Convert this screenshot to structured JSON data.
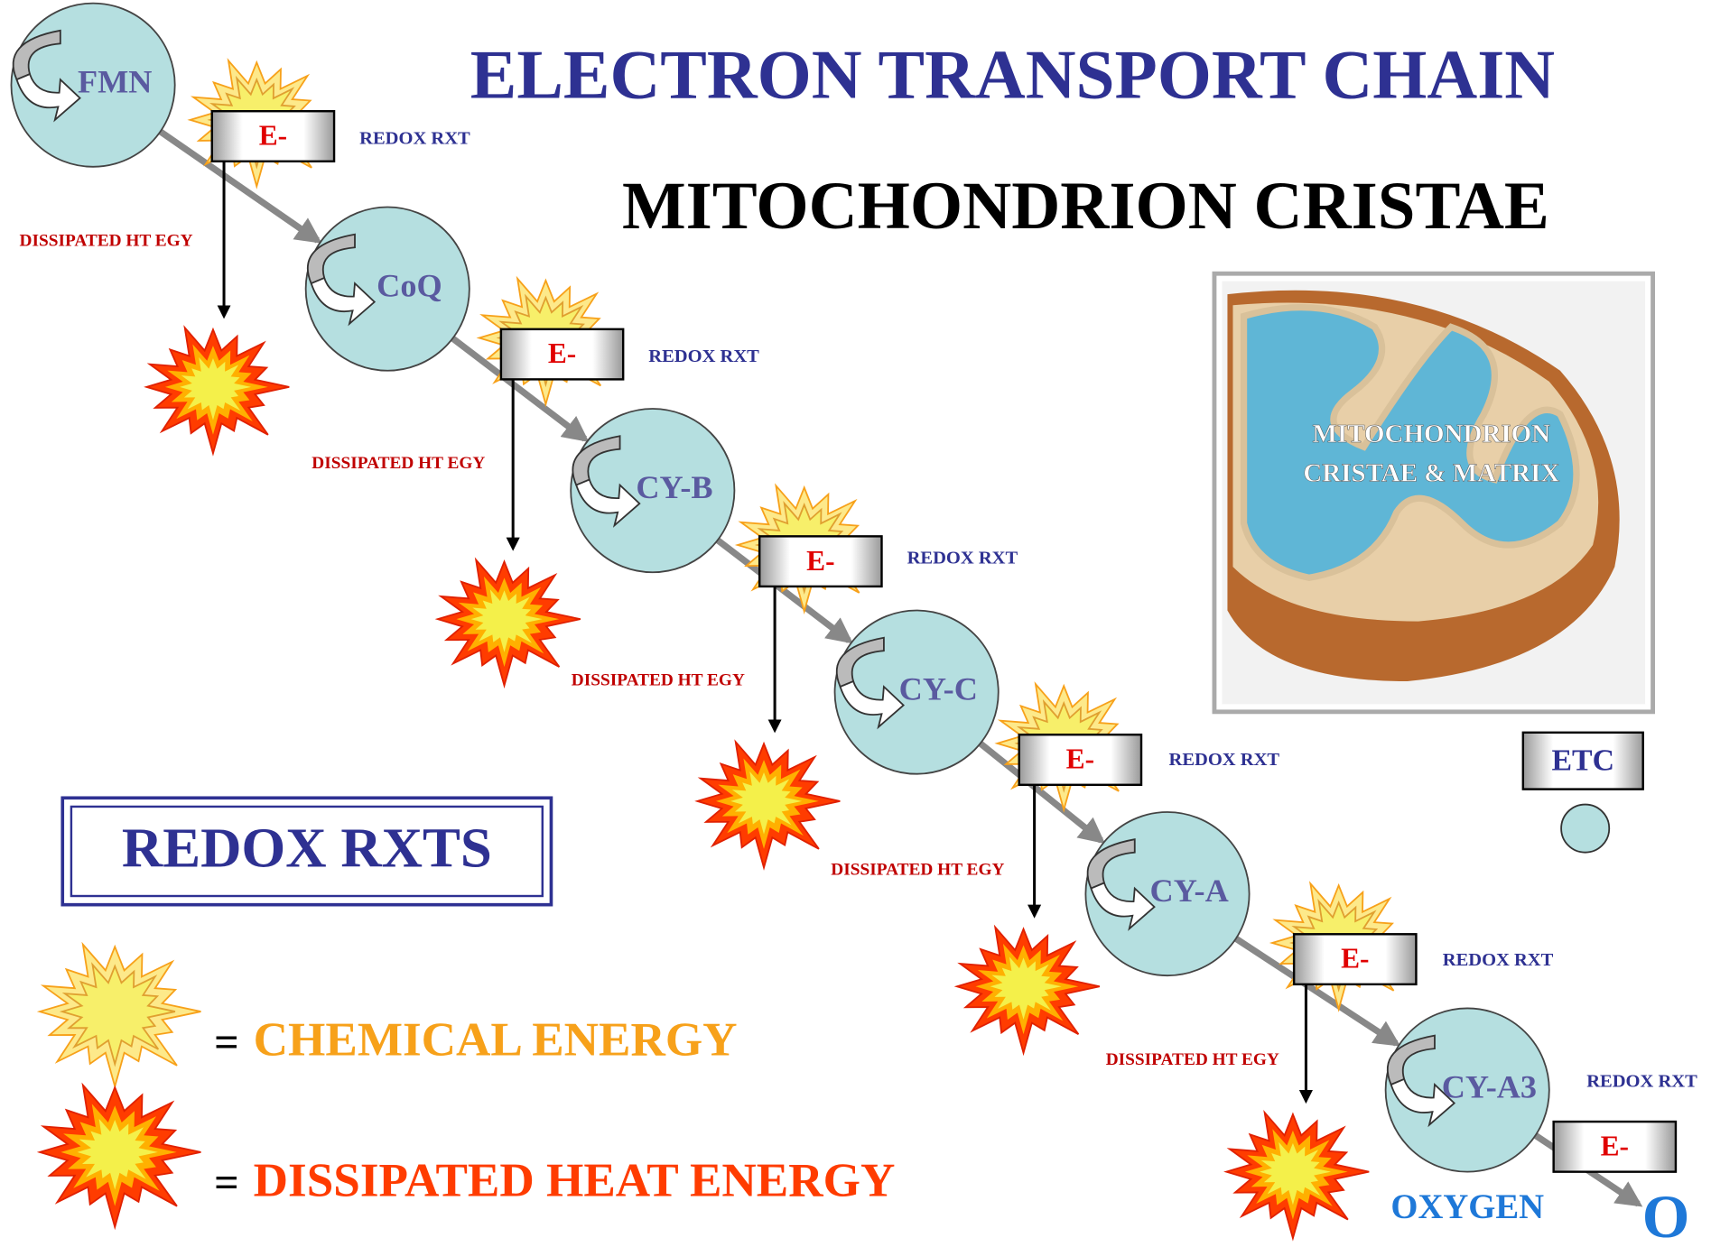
{
  "title": "ELECTRON TRANSPORT CHAIN",
  "subtitle": "MITOCHONDRION CRISTAE",
  "chain": [
    {
      "carrier": "FMN",
      "electron": "E-",
      "reaction": "REDOX RXT",
      "heat": "DISSIPATED HT EGY"
    },
    {
      "carrier": "CoQ",
      "electron": "E-",
      "reaction": "REDOX RXT",
      "heat": "DISSIPATED HT EGY"
    },
    {
      "carrier": "CY-B",
      "electron": "E-",
      "reaction": "REDOX RXT",
      "heat": "DISSIPATED HT EGY"
    },
    {
      "carrier": "CY-C",
      "electron": "E-",
      "reaction": "REDOX RXT",
      "heat": "DISSIPATED HT EGY"
    },
    {
      "carrier": "CY-A",
      "electron": "E-",
      "reaction": "REDOX RXT",
      "heat": "DISSIPATED HT EGY"
    },
    {
      "carrier": "CY-A3",
      "electron": "E-",
      "reaction": "REDOX RXT"
    }
  ],
  "image_label": [
    "MITOCHONDRION",
    "CRISTAE & MATRIX"
  ],
  "legend": {
    "title": "REDOX RXTS",
    "items": [
      {
        "sign": "=",
        "label": "CHEMICAL ENERGY"
      },
      {
        "sign": "=",
        "label": "DISSIPATED HEAT ENERGY"
      }
    ]
  },
  "key": "ETC",
  "end": {
    "acceptor": "OXYGEN",
    "symbol": "O"
  }
}
